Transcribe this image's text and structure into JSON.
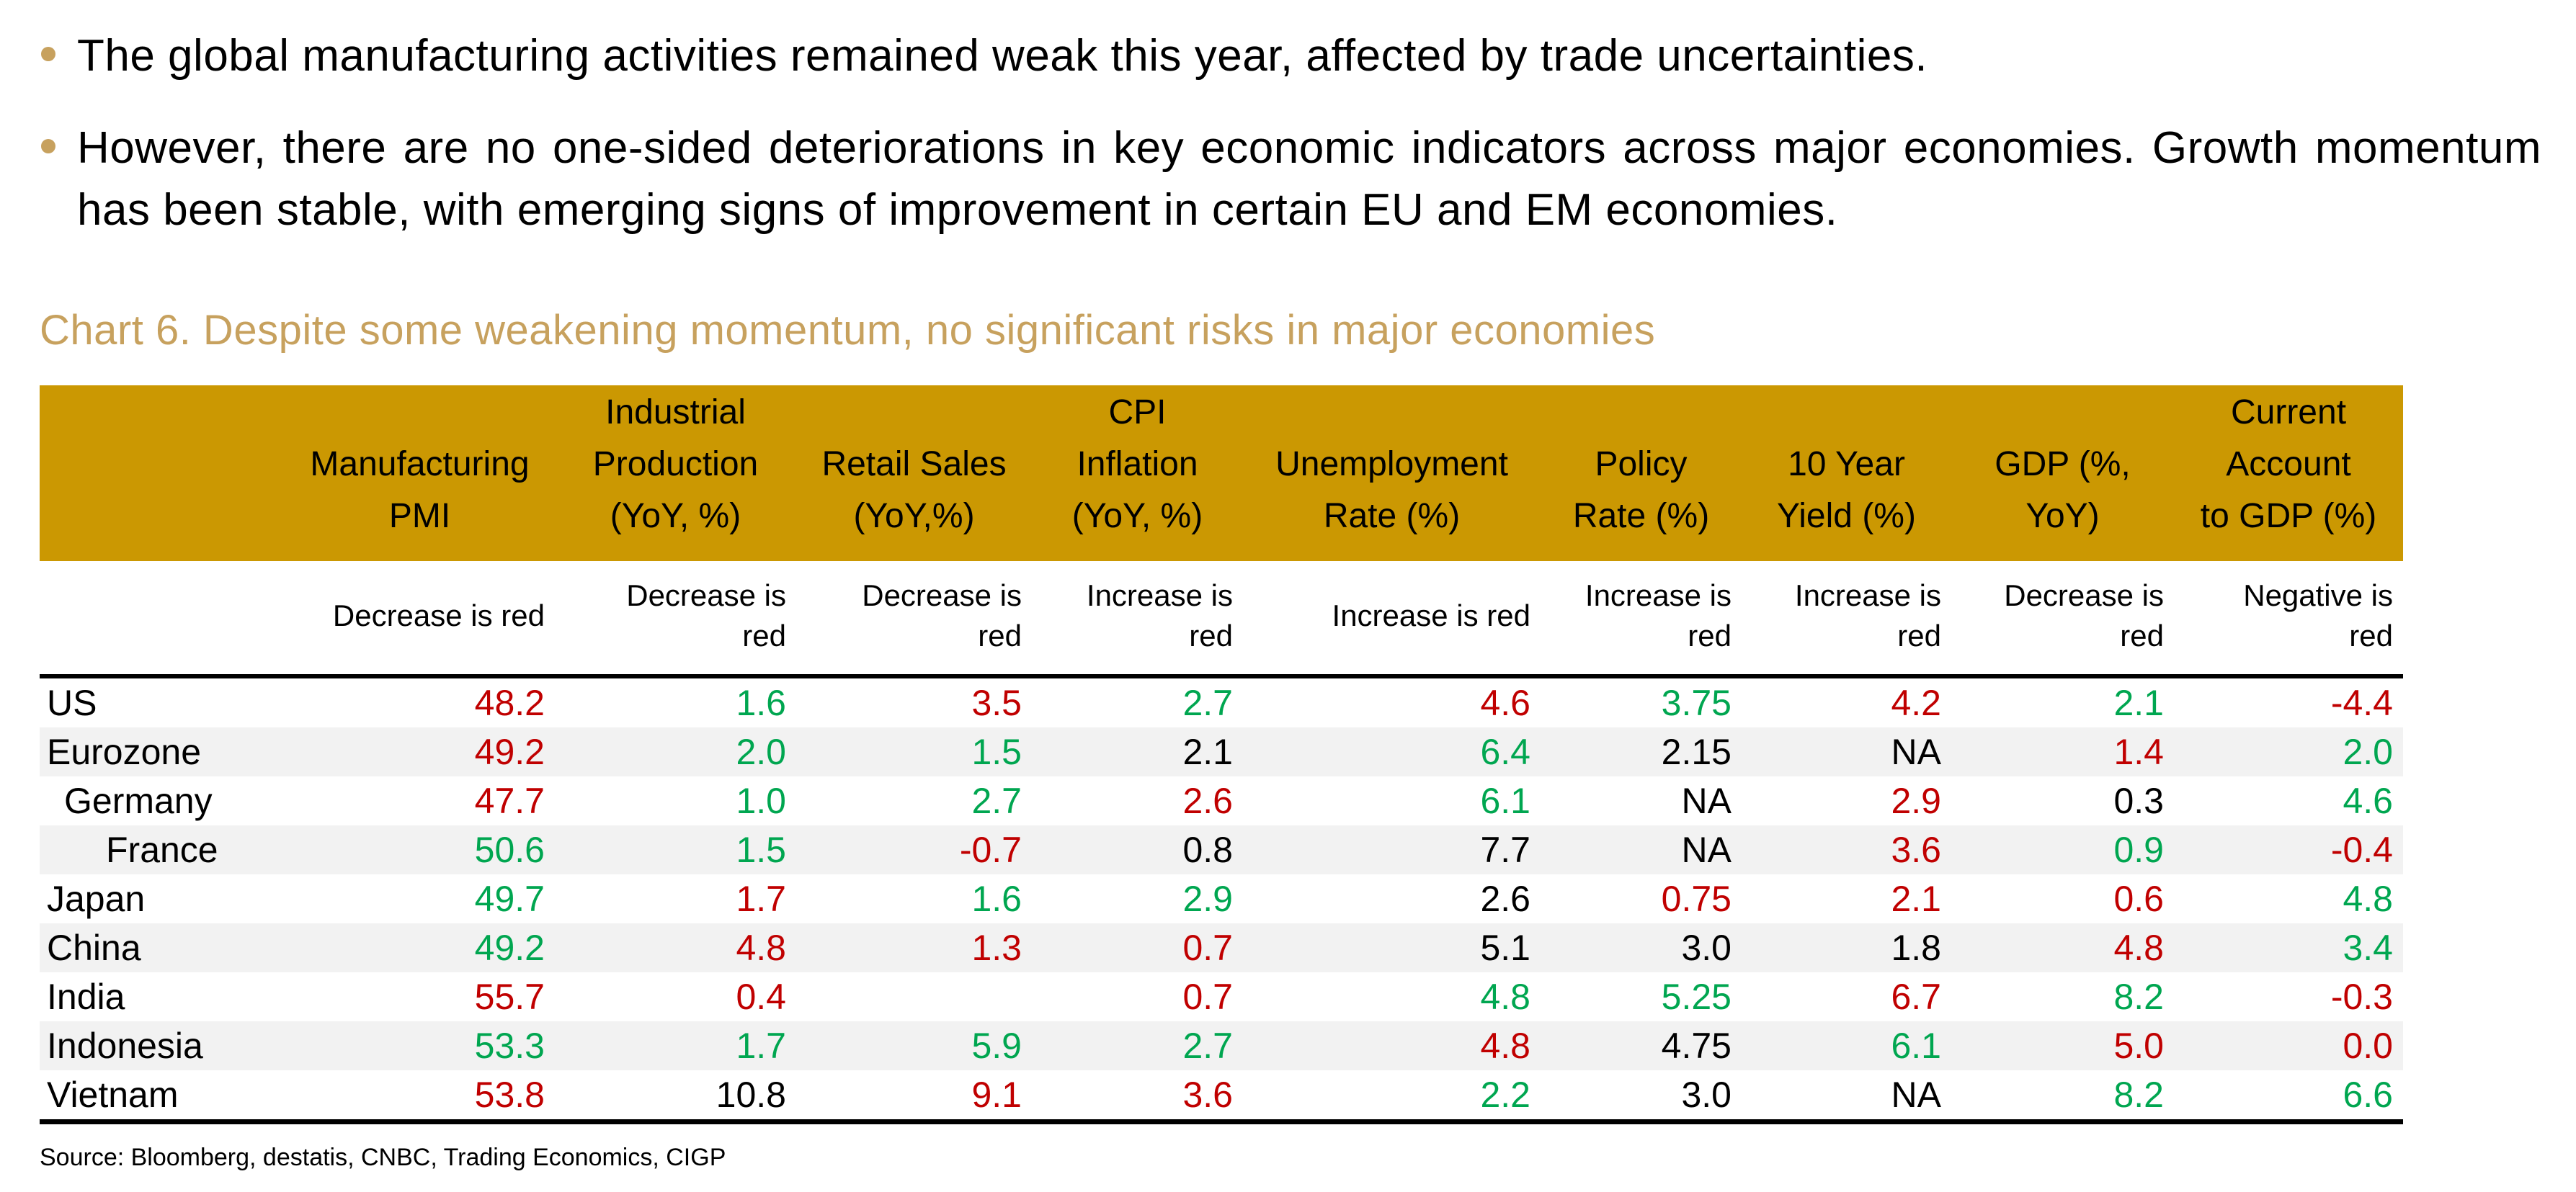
{
  "bullets": [
    {
      "text": "The global manufacturing activities remained weak this year, affected by trade uncertainties."
    },
    {
      "text": "However, there are no one-sided deteriorations in key economic indicators across major economies. Growth momentum has been stable, with emerging signs of improvement in certain EU and EM economies."
    }
  ],
  "chart_title": "Chart 6. Despite some weakening momentum, no significant risks in major economies",
  "table": {
    "columns": [
      {
        "key": "country",
        "label": "",
        "sub": ""
      },
      {
        "key": "pmi",
        "label": "Manufacturing\nPMI",
        "sub": "Decrease is red"
      },
      {
        "key": "indprod",
        "label": "Industrial\nProduction\n(YoY, %)",
        "sub": "Decrease is\nred"
      },
      {
        "key": "retail",
        "label": "Retail Sales\n(YoY,%)",
        "sub": "Decrease is\nred"
      },
      {
        "key": "cpi",
        "label": "CPI\nInflation\n(YoY, %)",
        "sub": "Increase is\nred"
      },
      {
        "key": "unemployment",
        "label": "Unemployment\nRate (%)",
        "sub": "Increase is red"
      },
      {
        "key": "policy",
        "label": "Policy\nRate (%)",
        "sub": "Increase is\nred"
      },
      {
        "key": "yield10y",
        "label": "10 Year\nYield (%)",
        "sub": "Increase is\nred"
      },
      {
        "key": "gdp",
        "label": "GDP (%,\nYoY)",
        "sub": "Decrease is\nred"
      },
      {
        "key": "currentacct",
        "label": "Current\nAccount\nto GDP (%)",
        "sub": "Negative is\nred"
      }
    ],
    "rows": [
      {
        "name": "US",
        "indent": 0,
        "values": [
          {
            "v": "48.2",
            "c": "red"
          },
          {
            "v": "1.6",
            "c": "green"
          },
          {
            "v": "3.5",
            "c": "red"
          },
          {
            "v": "2.7",
            "c": "green"
          },
          {
            "v": "4.6",
            "c": "red"
          },
          {
            "v": "3.75",
            "c": "green"
          },
          {
            "v": "4.2",
            "c": "red"
          },
          {
            "v": "2.1",
            "c": "green"
          },
          {
            "v": "-4.4",
            "c": "red"
          }
        ]
      },
      {
        "name": "Eurozone",
        "indent": 0,
        "values": [
          {
            "v": "49.2",
            "c": "red"
          },
          {
            "v": "2.0",
            "c": "green"
          },
          {
            "v": "1.5",
            "c": "green"
          },
          {
            "v": "2.1",
            "c": "black"
          },
          {
            "v": "6.4",
            "c": "green"
          },
          {
            "v": "2.15",
            "c": "black"
          },
          {
            "v": "NA",
            "c": "black"
          },
          {
            "v": "1.4",
            "c": "red"
          },
          {
            "v": "2.0",
            "c": "green"
          }
        ]
      },
      {
        "name": "Germany",
        "indent": 1,
        "values": [
          {
            "v": "47.7",
            "c": "red"
          },
          {
            "v": "1.0",
            "c": "green"
          },
          {
            "v": "2.7",
            "c": "green"
          },
          {
            "v": "2.6",
            "c": "red"
          },
          {
            "v": "6.1",
            "c": "green"
          },
          {
            "v": "NA",
            "c": "black"
          },
          {
            "v": "2.9",
            "c": "red"
          },
          {
            "v": "0.3",
            "c": "black"
          },
          {
            "v": "4.6",
            "c": "green"
          }
        ]
      },
      {
        "name": "France",
        "indent": 2,
        "values": [
          {
            "v": "50.6",
            "c": "green"
          },
          {
            "v": "1.5",
            "c": "green"
          },
          {
            "v": "-0.7",
            "c": "red"
          },
          {
            "v": "0.8",
            "c": "black"
          },
          {
            "v": "7.7",
            "c": "black"
          },
          {
            "v": "NA",
            "c": "black"
          },
          {
            "v": "3.6",
            "c": "red"
          },
          {
            "v": "0.9",
            "c": "green"
          },
          {
            "v": "-0.4",
            "c": "red"
          }
        ]
      },
      {
        "name": "Japan",
        "indent": 0,
        "values": [
          {
            "v": "49.7",
            "c": "green"
          },
          {
            "v": "1.7",
            "c": "red"
          },
          {
            "v": "1.6",
            "c": "green"
          },
          {
            "v": "2.9",
            "c": "green"
          },
          {
            "v": "2.6",
            "c": "black"
          },
          {
            "v": "0.75",
            "c": "red"
          },
          {
            "v": "2.1",
            "c": "red"
          },
          {
            "v": "0.6",
            "c": "red"
          },
          {
            "v": "4.8",
            "c": "green"
          }
        ]
      },
      {
        "name": "China",
        "indent": 0,
        "values": [
          {
            "v": "49.2",
            "c": "green"
          },
          {
            "v": "4.8",
            "c": "red"
          },
          {
            "v": "1.3",
            "c": "red"
          },
          {
            "v": "0.7",
            "c": "red"
          },
          {
            "v": "5.1",
            "c": "black"
          },
          {
            "v": "3.0",
            "c": "black"
          },
          {
            "v": "1.8",
            "c": "black"
          },
          {
            "v": "4.8",
            "c": "red"
          },
          {
            "v": "3.4",
            "c": "green"
          }
        ]
      },
      {
        "name": "India",
        "indent": 0,
        "values": [
          {
            "v": "55.7",
            "c": "red"
          },
          {
            "v": "0.4",
            "c": "red"
          },
          {
            "v": "",
            "c": "black"
          },
          {
            "v": "0.7",
            "c": "red"
          },
          {
            "v": "4.8",
            "c": "green"
          },
          {
            "v": "5.25",
            "c": "green"
          },
          {
            "v": "6.7",
            "c": "red"
          },
          {
            "v": "8.2",
            "c": "green"
          },
          {
            "v": "-0.3",
            "c": "red"
          }
        ]
      },
      {
        "name": "Indonesia",
        "indent": 0,
        "values": [
          {
            "v": "53.3",
            "c": "green"
          },
          {
            "v": "1.7",
            "c": "green"
          },
          {
            "v": "5.9",
            "c": "green"
          },
          {
            "v": "2.7",
            "c": "green"
          },
          {
            "v": "4.8",
            "c": "red"
          },
          {
            "v": "4.75",
            "c": "black"
          },
          {
            "v": "6.1",
            "c": "green"
          },
          {
            "v": "5.0",
            "c": "red"
          },
          {
            "v": "0.0",
            "c": "red"
          }
        ]
      },
      {
        "name": "Vietnam",
        "indent": 0,
        "values": [
          {
            "v": "53.8",
            "c": "red"
          },
          {
            "v": "10.8",
            "c": "black"
          },
          {
            "v": "9.1",
            "c": "red"
          },
          {
            "v": "3.6",
            "c": "red"
          },
          {
            "v": "2.2",
            "c": "green"
          },
          {
            "v": "3.0",
            "c": "black"
          },
          {
            "v": "NA",
            "c": "black"
          },
          {
            "v": "8.2",
            "c": "green"
          },
          {
            "v": "6.6",
            "c": "green"
          }
        ]
      }
    ]
  },
  "source": "Source: Bloomberg, destatis, CNBC, Trading Economics, CIGP",
  "colors": {
    "red": "#C00000",
    "green": "#00A650",
    "gold": "#CB9802",
    "tan": "#C7A15E",
    "rowalt": "#F2F2F2",
    "ink": "#000000"
  }
}
